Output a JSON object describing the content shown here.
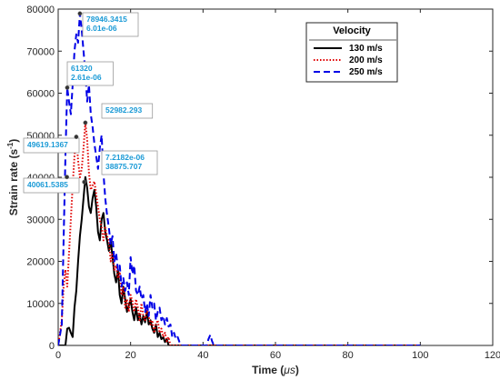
{
  "chart_data": {
    "type": "line",
    "xlabel_main": "Time (",
    "xlabel_unit": "μs",
    "xlabel_close": ")",
    "ylabel_main": "Strain rate (s",
    "ylabel_sup": "-1",
    "ylabel_close": ")",
    "xlim": [
      0,
      120
    ],
    "ylim": [
      0,
      80000
    ],
    "xticks": [
      "0",
      "20",
      "40",
      "60",
      "80",
      "100",
      "120"
    ],
    "yticks": [
      "0",
      "10000",
      "20000",
      "30000",
      "40000",
      "50000",
      "60000",
      "70000",
      "80000"
    ],
    "grid": false,
    "legend": {
      "title": "Velocity",
      "placement": "top-right",
      "entries": [
        "130 m/s",
        "200 m/s",
        "250 m/s"
      ]
    },
    "colors": {
      "s130": "#000000",
      "s200": "#e00000",
      "s250": "#0000e6",
      "annotation": "#1a9ad6"
    },
    "series": [
      {
        "name": "130 m/s",
        "style": "solid",
        "points": [
          [
            0,
            0
          ],
          [
            2,
            0
          ],
          [
            2.5,
            4000
          ],
          [
            3,
            4200
          ],
          [
            3.5,
            3000
          ],
          [
            4,
            2000
          ],
          [
            4.5,
            9000
          ],
          [
            5,
            13000
          ],
          [
            5.5,
            20000
          ],
          [
            6,
            26000
          ],
          [
            6.5,
            30000
          ],
          [
            7,
            35000
          ],
          [
            7.5,
            40061
          ],
          [
            8,
            37500
          ],
          [
            8.5,
            33000
          ],
          [
            9,
            31500
          ],
          [
            9.5,
            35000
          ],
          [
            10,
            37000
          ],
          [
            10.5,
            33000
          ],
          [
            11,
            27000
          ],
          [
            11.5,
            25000
          ],
          [
            12,
            30000
          ],
          [
            12.5,
            31500
          ],
          [
            13,
            27000
          ],
          [
            13.5,
            25000
          ],
          [
            14,
            22500
          ],
          [
            14.5,
            25000
          ],
          [
            15,
            21000
          ],
          [
            15.5,
            17000
          ],
          [
            16,
            15000
          ],
          [
            16.5,
            18000
          ],
          [
            17,
            12000
          ],
          [
            17.5,
            10000
          ],
          [
            18,
            14000
          ],
          [
            18.5,
            11000
          ],
          [
            19,
            8000
          ],
          [
            19.5,
            9500
          ],
          [
            20,
            11000
          ],
          [
            20.5,
            8000
          ],
          [
            21,
            6000
          ],
          [
            21.5,
            9000
          ],
          [
            22,
            6000
          ],
          [
            22.5,
            7500
          ],
          [
            23,
            5000
          ],
          [
            23.5,
            7000
          ],
          [
            24,
            5500
          ],
          [
            24.5,
            8000
          ],
          [
            25,
            5000
          ],
          [
            25.5,
            6000
          ],
          [
            26,
            4000
          ],
          [
            26.5,
            3000
          ],
          [
            27,
            5000
          ],
          [
            27.5,
            2000
          ],
          [
            28,
            3000
          ],
          [
            28.5,
            1500
          ],
          [
            29,
            2000
          ],
          [
            29.5,
            800
          ],
          [
            30,
            1500
          ],
          [
            30.5,
            0
          ],
          [
            100,
            0
          ]
        ]
      },
      {
        "name": "200 m/s",
        "style": "dotted",
        "points": [
          [
            0,
            0
          ],
          [
            1,
            6000
          ],
          [
            1.5,
            14000
          ],
          [
            2,
            18000
          ],
          [
            2.5,
            14000
          ],
          [
            3,
            22000
          ],
          [
            3.5,
            30000
          ],
          [
            4,
            38000
          ],
          [
            4.5,
            45000
          ],
          [
            5,
            49619
          ],
          [
            5.5,
            44000
          ],
          [
            6,
            40000
          ],
          [
            6.5,
            42000
          ],
          [
            7,
            47000
          ],
          [
            7.5,
            53000
          ],
          [
            8,
            49000
          ],
          [
            8.5,
            41000
          ],
          [
            9,
            37000
          ],
          [
            9.5,
            38000
          ],
          [
            10,
            39000
          ],
          [
            10.5,
            36000
          ],
          [
            11,
            33000
          ],
          [
            11.5,
            30000
          ],
          [
            12,
            28000
          ],
          [
            12.5,
            25000
          ],
          [
            13,
            28000
          ],
          [
            13.5,
            26000
          ],
          [
            14,
            25000
          ],
          [
            14.5,
            20000
          ],
          [
            15,
            22000
          ],
          [
            15.5,
            18000
          ],
          [
            16,
            19000
          ],
          [
            16.5,
            16000
          ],
          [
            17,
            17500
          ],
          [
            17.5,
            12000
          ],
          [
            18,
            14000
          ],
          [
            18.5,
            9000
          ],
          [
            19,
            11000
          ],
          [
            19.5,
            8000
          ],
          [
            20,
            12000
          ],
          [
            20.5,
            10500
          ],
          [
            21,
            8000
          ],
          [
            21.5,
            11000
          ],
          [
            22,
            9000
          ],
          [
            22.5,
            6000
          ],
          [
            23,
            10000
          ],
          [
            23.5,
            7000
          ],
          [
            24,
            6000
          ],
          [
            24.5,
            8500
          ],
          [
            25,
            7000
          ],
          [
            25.5,
            5000
          ],
          [
            26,
            6000
          ],
          [
            26.5,
            3000
          ],
          [
            27,
            5000
          ],
          [
            27.5,
            6000
          ],
          [
            28,
            3000
          ],
          [
            28.5,
            4000
          ],
          [
            29,
            2000
          ],
          [
            29.5,
            3000
          ],
          [
            30,
            1000
          ],
          [
            30.5,
            2000
          ],
          [
            31,
            0
          ],
          [
            100,
            0
          ]
        ]
      },
      {
        "name": "250 m/s",
        "style": "dashed",
        "points": [
          [
            0,
            0
          ],
          [
            1,
            5000
          ],
          [
            1.5,
            25000
          ],
          [
            2,
            45000
          ],
          [
            2.5,
            61320
          ],
          [
            3,
            58000
          ],
          [
            3.5,
            55000
          ],
          [
            4,
            62000
          ],
          [
            4.5,
            70000
          ],
          [
            5,
            74000
          ],
          [
            5.5,
            72000
          ],
          [
            6,
            78946
          ],
          [
            6.5,
            75000
          ],
          [
            7,
            70000
          ],
          [
            7.5,
            65000
          ],
          [
            8,
            58000
          ],
          [
            8.5,
            62000
          ],
          [
            9,
            55000
          ],
          [
            9.5,
            52000
          ],
          [
            10,
            48000
          ],
          [
            10.5,
            45000
          ],
          [
            11,
            42000
          ],
          [
            11.5,
            47000
          ],
          [
            12,
            50000
          ],
          [
            12.5,
            41000
          ],
          [
            13,
            35000
          ],
          [
            13.5,
            31000
          ],
          [
            14,
            28000
          ],
          [
            14.5,
            24000
          ],
          [
            15,
            26000
          ],
          [
            15.5,
            20000
          ],
          [
            16,
            22000
          ],
          [
            16.5,
            18000
          ],
          [
            17,
            19000
          ],
          [
            17.5,
            14000
          ],
          [
            18,
            16000
          ],
          [
            18.5,
            13000
          ],
          [
            19,
            15000
          ],
          [
            19.5,
            12000
          ],
          [
            20,
            21000
          ],
          [
            20.5,
            17000
          ],
          [
            21,
            19000
          ],
          [
            21.5,
            13000
          ],
          [
            22,
            12000
          ],
          [
            22.5,
            14000
          ],
          [
            23,
            11000
          ],
          [
            23.5,
            12000
          ],
          [
            24,
            8000
          ],
          [
            24.5,
            10000
          ],
          [
            25,
            7000
          ],
          [
            25.5,
            12000
          ],
          [
            26,
            9000
          ],
          [
            26.5,
            10000
          ],
          [
            27,
            6000
          ],
          [
            27.5,
            8000
          ],
          [
            28,
            9000
          ],
          [
            28.5,
            6000
          ],
          [
            29,
            7000
          ],
          [
            29.5,
            5000
          ],
          [
            30,
            6500
          ],
          [
            30.5,
            4500
          ],
          [
            31,
            5000
          ],
          [
            31.5,
            2000
          ],
          [
            32,
            3000
          ],
          [
            32.5,
            1500
          ],
          [
            33,
            2000
          ],
          [
            33.5,
            800
          ],
          [
            34,
            0
          ],
          [
            41,
            0
          ],
          [
            41.5,
            1500
          ],
          [
            42,
            2500
          ],
          [
            42.5,
            1000
          ],
          [
            43,
            0
          ],
          [
            100,
            0
          ]
        ]
      }
    ],
    "annotations": [
      {
        "lines": [
          "78946.3415",
          "6.01e-06"
        ],
        "x": 6,
        "y": 78946
      },
      {
        "lines": [
          "61320",
          "2.61e-06"
        ],
        "x": 2.5,
        "y": 61320
      },
      {
        "lines": [
          "52982.293"
        ],
        "x": 7.5,
        "y": 52982
      },
      {
        "lines": [
          "49619.1367"
        ],
        "x": 5,
        "y": 49619
      },
      {
        "lines": [
          "7.2182e-06",
          "38875.707"
        ],
        "x": 7.2,
        "y": 38876
      },
      {
        "lines": [
          "40061.5385"
        ],
        "x": 2.4,
        "y": 40061
      }
    ]
  }
}
